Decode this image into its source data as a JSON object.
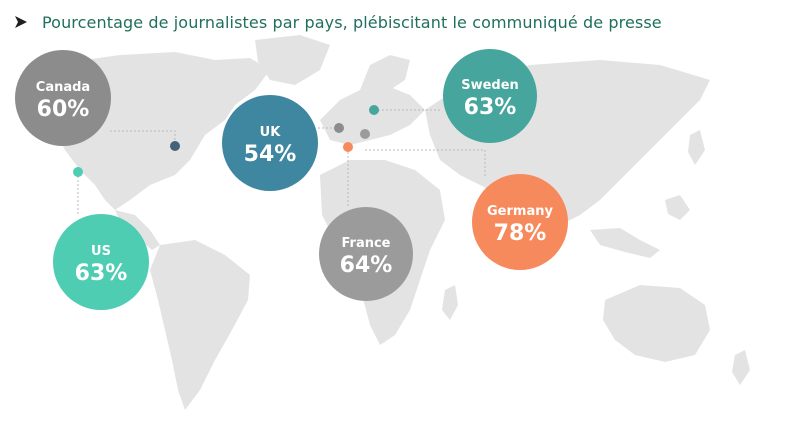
{
  "title": "Pourcentage de journalistes par pays, plébiscitant le communiqué de presse",
  "colors": {
    "title": "#1f6f5e",
    "map": "#e3e3e3",
    "leader": "#b9b9b9"
  },
  "chart_data": {
    "type": "bubble-map",
    "countries": [
      {
        "name": "Canada",
        "value": "60%",
        "color": "#8c8c8c"
      },
      {
        "name": "UK",
        "value": "54%",
        "color": "#3f86a0"
      },
      {
        "name": "Sweden",
        "value": "63%",
        "color": "#46a59c"
      },
      {
        "name": "US",
        "value": "63%",
        "color": "#4ecdb3"
      },
      {
        "name": "France",
        "value": "64%",
        "color": "#9b9b9b"
      },
      {
        "name": "Germany",
        "value": "78%",
        "color": "#f78a5d"
      }
    ]
  }
}
